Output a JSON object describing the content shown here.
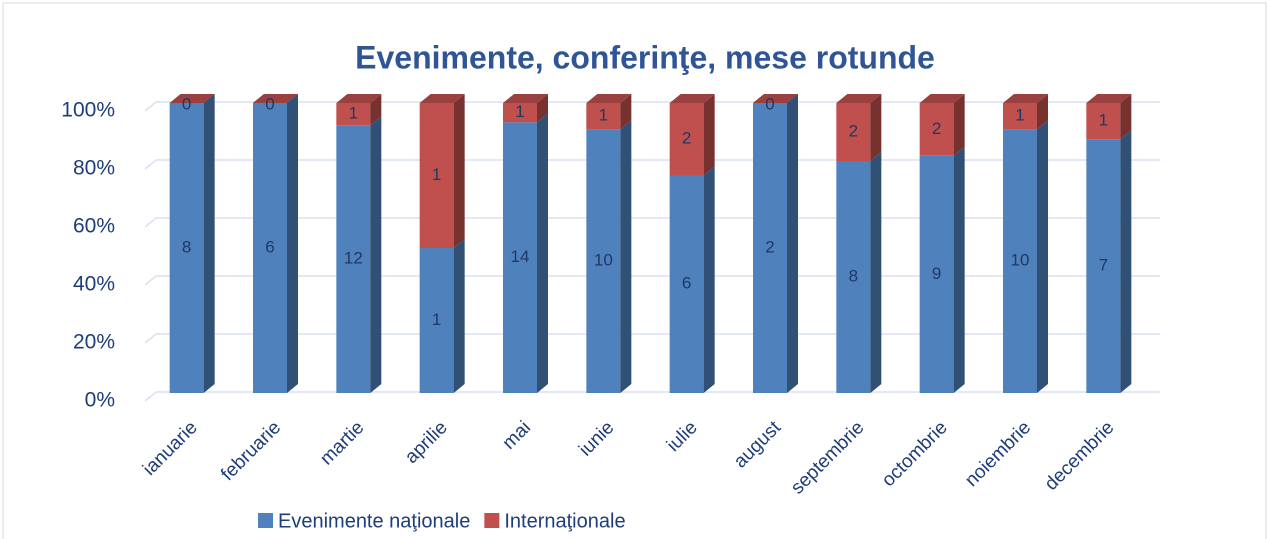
{
  "chart_data": {
    "type": "bar",
    "stack": "percent",
    "title": "Evenimente, conferinţe, mese rotunde",
    "categories": [
      "ianuarie",
      "februarie",
      "martie",
      "aprilie",
      "mai",
      "iunie",
      "iulie",
      "august",
      "septembrie",
      "octombrie",
      "noiembrie",
      "decembrie"
    ],
    "series": [
      {
        "name": "Evenimente naţionale",
        "color": "#4f81bd",
        "values": [
          8,
          6,
          12,
          1,
          14,
          10,
          6,
          2,
          8,
          9,
          10,
          7
        ]
      },
      {
        "name": "Internaţionale",
        "color": "#c0504d",
        "values": [
          0,
          0,
          1,
          1,
          1,
          1,
          2,
          0,
          2,
          2,
          1,
          1
        ]
      }
    ],
    "ylim": [
      0,
      100
    ],
    "yticks": [
      {
        "value": 0,
        "label": "0%"
      },
      {
        "value": 20,
        "label": "20%"
      },
      {
        "value": 40,
        "label": "40%"
      },
      {
        "value": 60,
        "label": "60%"
      },
      {
        "value": 80,
        "label": "80%"
      },
      {
        "value": 100,
        "label": "100%"
      }
    ],
    "grid": true,
    "legend": "bottom"
  }
}
